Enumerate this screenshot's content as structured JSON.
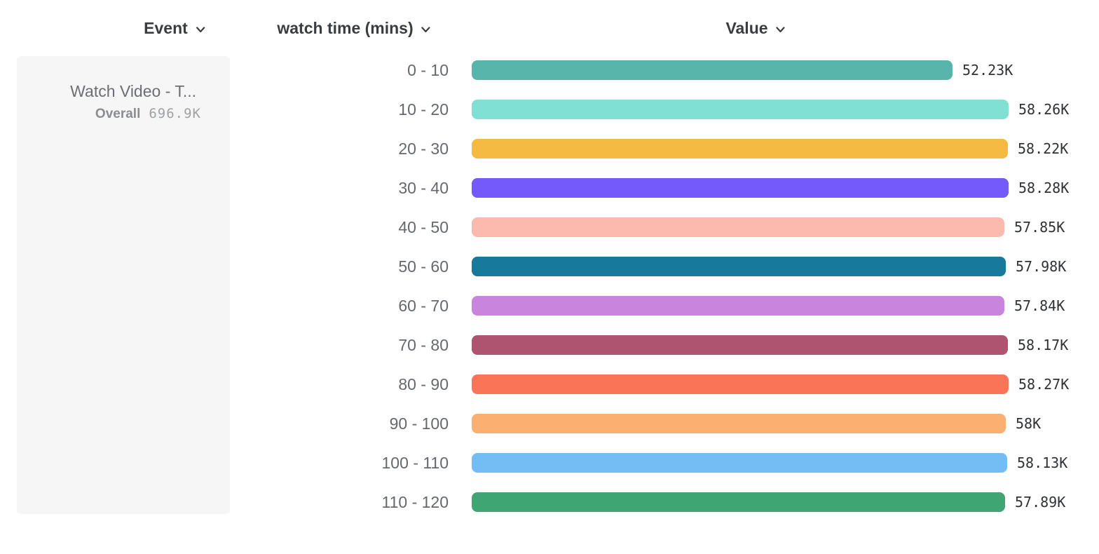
{
  "header": {
    "columns": [
      {
        "label": "Event"
      },
      {
        "label": "watch time (mins)"
      },
      {
        "label": "Value"
      }
    ]
  },
  "event_card": {
    "title": "Watch Video - T...",
    "overall_label": "Overall",
    "overall_value": "696.9K"
  },
  "chart_data": {
    "type": "bar",
    "orientation": "horizontal",
    "title": "",
    "xlabel": "Value",
    "ylabel": "watch time (mins)",
    "grid": false,
    "xlim_thousands": [
      0,
      58.28
    ],
    "categories": [
      "0 - 10",
      "10 - 20",
      "20 - 30",
      "30 - 40",
      "40 - 50",
      "50 - 60",
      "60 - 70",
      "70 - 80",
      "80 - 90",
      "90 - 100",
      "100 - 110",
      "110 - 120"
    ],
    "values_thousands": [
      52.23,
      58.26,
      58.22,
      58.28,
      57.85,
      57.98,
      57.84,
      58.17,
      58.27,
      58.0,
      58.13,
      57.89
    ],
    "value_labels": [
      "52.23K",
      "58.26K",
      "58.22K",
      "58.28K",
      "57.85K",
      "57.98K",
      "57.84K",
      "58.17K",
      "58.27K",
      "58K",
      "58.13K",
      "57.89K"
    ],
    "colors": [
      "#57b5ac",
      "#7fe0d3",
      "#f5ba42",
      "#7459fb",
      "#fcb9ae",
      "#17799c",
      "#c985de",
      "#ae5471",
      "#fa7457",
      "#fbb071",
      "#74bdf4",
      "#3fa572"
    ]
  }
}
